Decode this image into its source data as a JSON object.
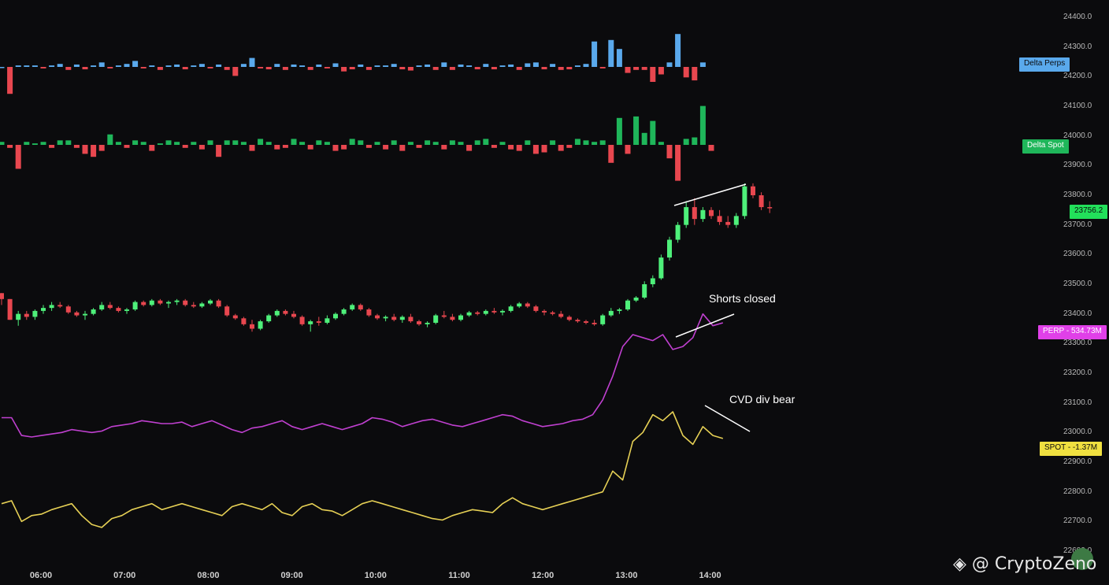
{
  "price_axis": {
    "labels": [
      "24400.0",
      "24300.0",
      "24200.0",
      "24100.0",
      "24000.0",
      "23900.0",
      "23800.0",
      "23700.0",
      "23600.0",
      "23500.0",
      "23400.0",
      "23300.0",
      "23200.0",
      "23100.0",
      "23000.0",
      "22900.0",
      "22800.0",
      "22700.0",
      "22600.0"
    ]
  },
  "time_axis": {
    "labels": [
      "06:00",
      "07:00",
      "08:00",
      "09:00",
      "10:00",
      "11:00",
      "12:00",
      "13:00",
      "14:00"
    ]
  },
  "tags": {
    "delta_perps": {
      "text": "Delta Perps",
      "bg": "#5aa9ec",
      "fg": "#0b0b0d"
    },
    "delta_spot": {
      "text": "Delta Spot",
      "bg": "#1fb65a",
      "fg": "#ffffff"
    },
    "last_price": {
      "text": "23756.2",
      "bg": "#22e05a",
      "fg": "#0b0b0d"
    },
    "perp": {
      "text": "PERP - 534.73M",
      "bg": "#e040e8",
      "fg": "#ffffff"
    },
    "spot": {
      "text": "SPOT - -1.37M",
      "bg": "#f0e040",
      "fg": "#0b0b0d"
    }
  },
  "annotations": {
    "shorts_closed": "Shorts closed",
    "cvd_div_bear": "CVD div bear"
  },
  "watermark": "◈ @ CryptoZeno",
  "colors": {
    "bull": "#4ef07a",
    "bear": "#e8474f",
    "perp_bar_up": "#5aa9ec",
    "spot_bar_up": "#1fb65a",
    "perp_cvd": "#c040d0",
    "spot_cvd": "#e6d055",
    "trendline": "#ffffff"
  },
  "chart_data": {
    "type": "line",
    "title": "",
    "xlabel": "",
    "ylabel": "",
    "ylim": [
      22600,
      24400
    ],
    "time_range": [
      "05:45",
      "14:40"
    ],
    "bars_per_hour": 12,
    "price_candles": [
      [
        23470,
        23470,
        23430,
        23450
      ],
      [
        23450,
        23450,
        23380,
        23380
      ],
      [
        23380,
        23410,
        23360,
        23400
      ],
      [
        23400,
        23410,
        23380,
        23390
      ],
      [
        23390,
        23415,
        23380,
        23410
      ],
      [
        23410,
        23430,
        23400,
        23420
      ],
      [
        23420,
        23440,
        23410,
        23430
      ],
      [
        23430,
        23440,
        23420,
        23425
      ],
      [
        23425,
        23430,
        23400,
        23405
      ],
      [
        23405,
        23410,
        23390,
        23395
      ],
      [
        23395,
        23410,
        23380,
        23400
      ],
      [
        23400,
        23420,
        23395,
        23415
      ],
      [
        23415,
        23440,
        23410,
        23430
      ],
      [
        23430,
        23440,
        23415,
        23420
      ],
      [
        23420,
        23425,
        23405,
        23410
      ],
      [
        23410,
        23420,
        23400,
        23415
      ],
      [
        23415,
        23445,
        23410,
        23440
      ],
      [
        23440,
        23445,
        23425,
        23430
      ],
      [
        23430,
        23450,
        23425,
        23445
      ],
      [
        23445,
        23450,
        23430,
        23435
      ],
      [
        23435,
        23445,
        23420,
        23440
      ],
      [
        23440,
        23450,
        23430,
        23445
      ],
      [
        23445,
        23450,
        23425,
        23430
      ],
      [
        23430,
        23440,
        23420,
        23425
      ],
      [
        23425,
        23440,
        23420,
        23435
      ],
      [
        23435,
        23450,
        23430,
        23445
      ],
      [
        23445,
        23450,
        23420,
        23425
      ],
      [
        23425,
        23430,
        23390,
        23395
      ],
      [
        23395,
        23400,
        23380,
        23385
      ],
      [
        23385,
        23390,
        23360,
        23365
      ],
      [
        23365,
        23380,
        23340,
        23350
      ],
      [
        23350,
        23380,
        23345,
        23375
      ],
      [
        23375,
        23400,
        23370,
        23395
      ],
      [
        23395,
        23415,
        23390,
        23410
      ],
      [
        23410,
        23415,
        23395,
        23400
      ],
      [
        23400,
        23410,
        23385,
        23390
      ],
      [
        23390,
        23395,
        23360,
        23365
      ],
      [
        23365,
        23380,
        23340,
        23375
      ],
      [
        23375,
        23390,
        23360,
        23370
      ],
      [
        23370,
        23395,
        23365,
        23385
      ],
      [
        23385,
        23405,
        23380,
        23400
      ],
      [
        23400,
        23420,
        23395,
        23415
      ],
      [
        23415,
        23435,
        23410,
        23430
      ],
      [
        23430,
        23435,
        23410,
        23415
      ],
      [
        23415,
        23420,
        23390,
        23395
      ],
      [
        23395,
        23400,
        23380,
        23385
      ],
      [
        23385,
        23395,
        23375,
        23390
      ],
      [
        23390,
        23400,
        23375,
        23380
      ],
      [
        23380,
        23395,
        23370,
        23390
      ],
      [
        23390,
        23400,
        23370,
        23375
      ],
      [
        23375,
        23380,
        23360,
        23365
      ],
      [
        23365,
        23375,
        23355,
        23370
      ],
      [
        23370,
        23400,
        23365,
        23395
      ],
      [
        23395,
        23410,
        23385,
        23390
      ],
      [
        23390,
        23400,
        23375,
        23380
      ],
      [
        23380,
        23400,
        23375,
        23395
      ],
      [
        23395,
        23410,
        23390,
        23405
      ],
      [
        23405,
        23410,
        23395,
        23400
      ],
      [
        23400,
        23415,
        23395,
        23410
      ],
      [
        23410,
        23420,
        23400,
        23405
      ],
      [
        23405,
        23415,
        23395,
        23410
      ],
      [
        23410,
        23430,
        23405,
        23425
      ],
      [
        23425,
        23440,
        23420,
        23435
      ],
      [
        23435,
        23440,
        23420,
        23425
      ],
      [
        23425,
        23430,
        23405,
        23410
      ],
      [
        23410,
        23415,
        23395,
        23405
      ],
      [
        23405,
        23410,
        23395,
        23400
      ],
      [
        23400,
        23410,
        23385,
        23390
      ],
      [
        23390,
        23395,
        23375,
        23380
      ],
      [
        23380,
        23385,
        23370,
        23375
      ],
      [
        23375,
        23380,
        23365,
        23370
      ],
      [
        23370,
        23380,
        23360,
        23365
      ],
      [
        23365,
        23400,
        23360,
        23395
      ],
      [
        23395,
        23420,
        23390,
        23410
      ],
      [
        23410,
        23420,
        23400,
        23415
      ],
      [
        23415,
        23450,
        23410,
        23445
      ],
      [
        23445,
        23460,
        23440,
        23455
      ],
      [
        23455,
        23510,
        23450,
        23500
      ],
      [
        23500,
        23530,
        23490,
        23520
      ],
      [
        23520,
        23600,
        23515,
        23590
      ],
      [
        23590,
        23660,
        23580,
        23650
      ],
      [
        23650,
        23710,
        23640,
        23700
      ],
      [
        23700,
        23780,
        23690,
        23760
      ],
      [
        23760,
        23790,
        23700,
        23720
      ],
      [
        23720,
        23760,
        23710,
        23750
      ],
      [
        23750,
        23760,
        23720,
        23730
      ],
      [
        23730,
        23750,
        23700,
        23710
      ],
      [
        23710,
        23730,
        23690,
        23700
      ],
      [
        23700,
        23740,
        23690,
        23730
      ],
      [
        23730,
        23840,
        23720,
        23830
      ],
      [
        23830,
        23840,
        23790,
        23800
      ],
      [
        23800,
        23810,
        23750,
        23760
      ],
      [
        23760,
        23780,
        23740,
        23756.2
      ]
    ],
    "delta_perps": [
      0,
      -90,
      5,
      5,
      5,
      -5,
      5,
      10,
      -10,
      8,
      -8,
      5,
      15,
      -5,
      5,
      10,
      20,
      -5,
      5,
      -10,
      5,
      8,
      -8,
      5,
      10,
      -5,
      8,
      -10,
      -30,
      10,
      30,
      -5,
      -8,
      10,
      -10,
      8,
      5,
      -10,
      8,
      -5,
      12,
      -15,
      -8,
      8,
      -10,
      5,
      5,
      10,
      -8,
      -12,
      5,
      8,
      -10,
      15,
      -10,
      8,
      5,
      -8,
      10,
      -8,
      5,
      8,
      -10,
      12,
      15,
      -8,
      10,
      -10,
      -8,
      5,
      10,
      85,
      -5,
      90,
      60,
      -20,
      -10,
      -10,
      -50,
      -25,
      15,
      110,
      -35,
      -45,
      15
    ],
    "delta_spot": [
      10,
      -10,
      -80,
      10,
      5,
      10,
      -10,
      15,
      15,
      -10,
      -30,
      -40,
      -20,
      35,
      10,
      -10,
      15,
      10,
      -20,
      5,
      15,
      10,
      -10,
      10,
      -15,
      15,
      -40,
      15,
      15,
      10,
      -20,
      20,
      10,
      -15,
      -10,
      20,
      10,
      -15,
      15,
      10,
      -20,
      -15,
      20,
      15,
      -10,
      10,
      -15,
      15,
      -20,
      10,
      -10,
      15,
      10,
      -15,
      15,
      10,
      -20,
      15,
      20,
      -10,
      10,
      -15,
      -20,
      15,
      -30,
      -25,
      15,
      -20,
      -10,
      20,
      15,
      10,
      15,
      -60,
      90,
      -30,
      95,
      40,
      80,
      10,
      -45,
      -120,
      20,
      25,
      130,
      -20
    ],
    "perp_cvd": [
      23050,
      23050,
      22990,
      22985,
      22990,
      22995,
      23000,
      23010,
      23005,
      23000,
      23005,
      23020,
      23025,
      23030,
      23040,
      23035,
      23030,
      23030,
      23035,
      23020,
      23030,
      23040,
      23025,
      23010,
      23000,
      23015,
      23020,
      23030,
      23040,
      23020,
      23010,
      23020,
      23030,
      23020,
      23010,
      23020,
      23030,
      23050,
      23045,
      23035,
      23020,
      23030,
      23040,
      23045,
      23035,
      23025,
      23020,
      23030,
      23040,
      23050,
      23060,
      23055,
      23040,
      23030,
      23020,
      23025,
      23030,
      23040,
      23045,
      23060,
      23110,
      23190,
      23290,
      23330,
      23320,
      23310,
      23330,
      23280,
      23290,
      23320,
      23400,
      23360,
      23370
    ],
    "spot_cvd": [
      22760,
      22770,
      22700,
      22720,
      22725,
      22740,
      22750,
      22760,
      22720,
      22690,
      22680,
      22710,
      22720,
      22740,
      22750,
      22760,
      22740,
      22750,
      22760,
      22750,
      22740,
      22730,
      22720,
      22750,
      22760,
      22750,
      22740,
      22760,
      22730,
      22720,
      22750,
      22760,
      22740,
      22735,
      22720,
      22740,
      22760,
      22770,
      22760,
      22750,
      22740,
      22730,
      22720,
      22710,
      22705,
      22720,
      22730,
      22740,
      22735,
      22730,
      22760,
      22780,
      22760,
      22750,
      22740,
      22750,
      22760,
      22770,
      22780,
      22790,
      22800,
      22870,
      22840,
      22970,
      23000,
      23060,
      23040,
      23070,
      22990,
      22960,
      23020,
      22990,
      22980
    ]
  }
}
